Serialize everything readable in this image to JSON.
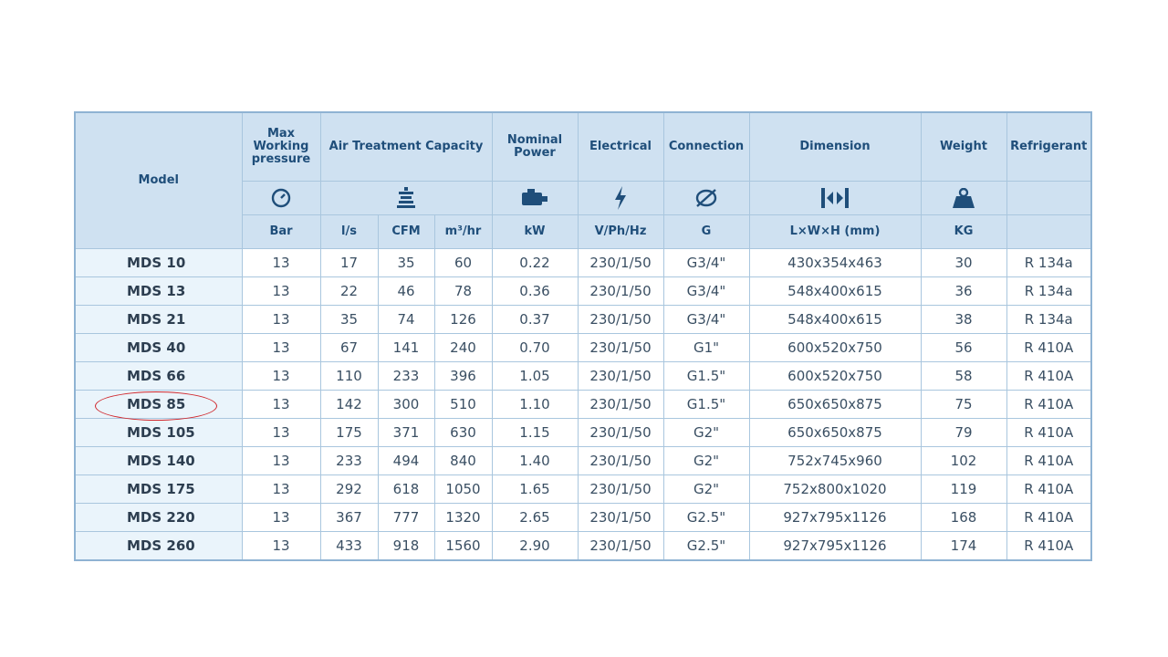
{
  "headers": {
    "model": "Model",
    "max_pressure": "Max Working pressure",
    "air_treatment": "Air Treatment Capacity",
    "nominal_power": "Nominal Power",
    "electrical": "Electrical",
    "connection": "Connection",
    "dimension": "Dimension",
    "weight": "Weight",
    "refrigerant": "Refrigerant"
  },
  "icons": [
    "gauge-icon",
    "air-filter-icon",
    "motor-icon",
    "lightning-icon",
    "pipe-diameter-icon",
    "dimension-arrows-icon",
    "weight-icon"
  ],
  "units": {
    "pressure": "Bar",
    "ls": "l/s",
    "cfm": "CFM",
    "m3hr": "m³/hr",
    "power": "kW",
    "electrical": "V/Ph/Hz",
    "connection": "G",
    "dimension": "L×W×H (mm)",
    "weight": "KG"
  },
  "rows": [
    {
      "model": "MDS 10",
      "bar": "13",
      "ls": "17",
      "cfm": "35",
      "m3hr": "60",
      "kw": "0.22",
      "elec": "230/1/50",
      "conn": "G3/4\"",
      "dim": "430x354x463",
      "kg": "30",
      "ref": "R 134a"
    },
    {
      "model": "MDS 13",
      "bar": "13",
      "ls": "22",
      "cfm": "46",
      "m3hr": "78",
      "kw": "0.36",
      "elec": "230/1/50",
      "conn": "G3/4\"",
      "dim": "548x400x615",
      "kg": "36",
      "ref": "R 134a"
    },
    {
      "model": "MDS 21",
      "bar": "13",
      "ls": "35",
      "cfm": "74",
      "m3hr": "126",
      "kw": "0.37",
      "elec": "230/1/50",
      "conn": "G3/4\"",
      "dim": "548x400x615",
      "kg": "38",
      "ref": "R 134a"
    },
    {
      "model": "MDS 40",
      "bar": "13",
      "ls": "67",
      "cfm": "141",
      "m3hr": "240",
      "kw": "0.70",
      "elec": "230/1/50",
      "conn": "G1\"",
      "dim": "600x520x750",
      "kg": "56",
      "ref": "R 410A"
    },
    {
      "model": "MDS 66",
      "bar": "13",
      "ls": "110",
      "cfm": "233",
      "m3hr": "396",
      "kw": "1.05",
      "elec": "230/1/50",
      "conn": "G1.5\"",
      "dim": "600x520x750",
      "kg": "58",
      "ref": "R 410A"
    },
    {
      "model": "MDS 85",
      "bar": "13",
      "ls": "142",
      "cfm": "300",
      "m3hr": "510",
      "kw": "1.10",
      "elec": "230/1/50",
      "conn": "G1.5\"",
      "dim": "650x650x875",
      "kg": "75",
      "ref": "R 410A"
    },
    {
      "model": "MDS 105",
      "bar": "13",
      "ls": "175",
      "cfm": "371",
      "m3hr": "630",
      "kw": "1.15",
      "elec": "230/1/50",
      "conn": "G2\"",
      "dim": "650x650x875",
      "kg": "79",
      "ref": "R 410A"
    },
    {
      "model": "MDS 140",
      "bar": "13",
      "ls": "233",
      "cfm": "494",
      "m3hr": "840",
      "kw": "1.40",
      "elec": "230/1/50",
      "conn": "G2\"",
      "dim": "752x745x960",
      "kg": "102",
      "ref": "R 410A"
    },
    {
      "model": "MDS 175",
      "bar": "13",
      "ls": "292",
      "cfm": "618",
      "m3hr": "1050",
      "kw": "1.65",
      "elec": "230/1/50",
      "conn": "G2\"",
      "dim": "752x800x1020",
      "kg": "119",
      "ref": "R 410A"
    },
    {
      "model": "MDS 220",
      "bar": "13",
      "ls": "367",
      "cfm": "777",
      "m3hr": "1320",
      "kw": "2.65",
      "elec": "230/1/50",
      "conn": "G2.5\"",
      "dim": "927x795x1126",
      "kg": "168",
      "ref": "R 410A"
    },
    {
      "model": "MDS 260",
      "bar": "13",
      "ls": "433",
      "cfm": "918",
      "m3hr": "1560",
      "kw": "2.90",
      "elec": "230/1/50",
      "conn": "G2.5\"",
      "dim": "927x795x1126",
      "kg": "174",
      "ref": "R 410A"
    }
  ],
  "colors": {
    "header_bg": "#cfe1f1",
    "model_col_bg": "#eaf4fb",
    "border": "#a9c6de",
    "highlight": "#d0252b"
  }
}
